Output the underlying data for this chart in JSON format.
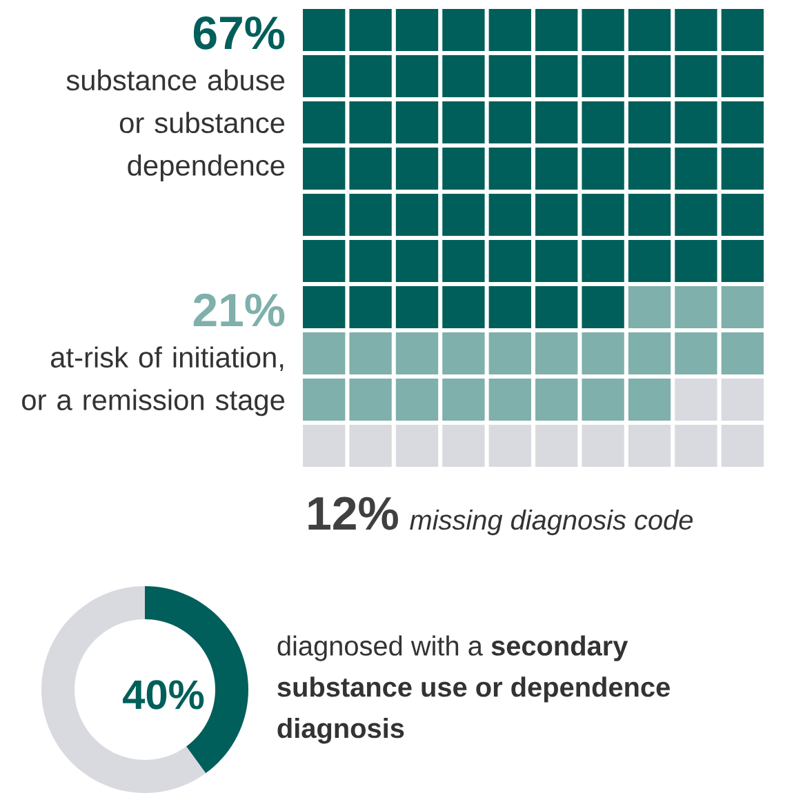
{
  "chart_data": [
    {
      "type": "other",
      "categories": [
        "substance abuse or substance dependence",
        "at-risk of initiation, or a remission stage",
        "missing diagnosis code"
      ],
      "values": [
        67,
        21,
        12
      ],
      "value_labels": [
        "67%",
        "21%",
        "12%"
      ],
      "colors": [
        "#005f5a",
        "#7fb0ab",
        "#d9dadf"
      ]
    },
    {
      "type": "donut",
      "categories": [
        "diagnosed with a **secondary substance use or dependence diagnosis**",
        null
      ],
      "values": [
        40,
        60
      ],
      "value_labels": [
        "40%",
        null
      ],
      "colors": [
        "#005f5a",
        "#d9dadf"
      ]
    }
  ]
}
